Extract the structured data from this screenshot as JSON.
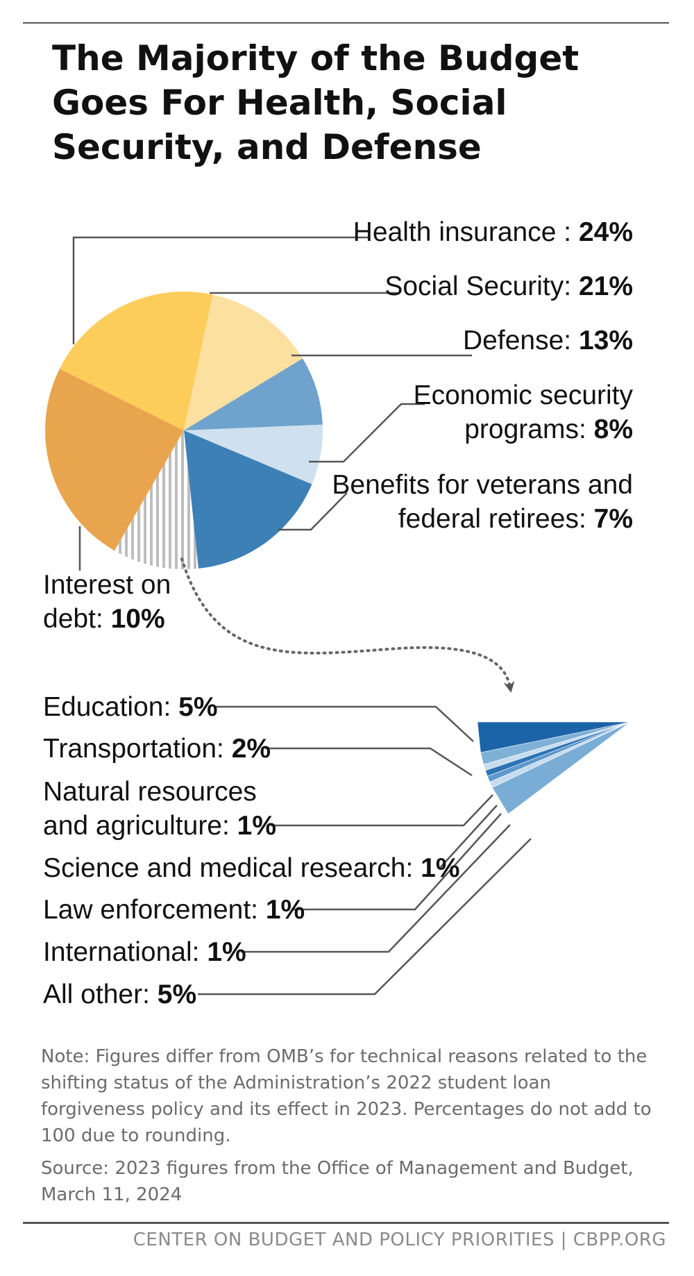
{
  "title": "The Majority of the Budget Goes For Health, Social Security, and Defense",
  "note": "Note: Figures differ from OMB’s for technical reasons related to the shifting status of the Administration’s 2022 student loan forgiveness policy and its effect in 2023. Percentages do not add to 100 due to rounding.",
  "source": "Source: 2023 figures from the Office of Management and Budget, March 11, 2024",
  "footer": "CENTER ON BUDGET AND POLICY PRIORITIES | CBPP.ORG",
  "chart_data": [
    {
      "type": "pie",
      "slices": [
        {
          "label_lines": [
            "Health insurance : "
          ],
          "value_text": "24%",
          "value": 24,
          "color": "#e9a54e"
        },
        {
          "label_lines": [
            "Social Security: "
          ],
          "value_text": "21%",
          "value": 21,
          "color": "#fccd5a"
        },
        {
          "label_lines": [
            "Defense: "
          ],
          "value_text": "13%",
          "value": 13,
          "color": "#fce0a0"
        },
        {
          "label_lines": [
            "Economic security",
            "programs: "
          ],
          "value_text": "8%",
          "value": 8,
          "color": "#6fa2cc"
        },
        {
          "label_lines": [
            "Benefits for veterans and",
            "federal retirees: "
          ],
          "value_text": "7%",
          "value": 7,
          "color": "#cfe1ee"
        },
        {
          "label_lines": [],
          "value_text": "",
          "value": 17,
          "color": "#3d80b6"
        },
        {
          "label_lines": [
            "Interest on",
            "debt: "
          ],
          "value_text": "10%",
          "value": 10,
          "color": "hatch"
        }
      ]
    },
    {
      "type": "pie",
      "slices": [
        {
          "label_lines": [
            "Education: "
          ],
          "value_text": "5%",
          "value": 5,
          "color": "#1c64a8"
        },
        {
          "label_lines": [
            "Transportation: "
          ],
          "value_text": "2%",
          "value": 2,
          "color": "#7fb0d6"
        },
        {
          "label_lines": [
            "Natural resources",
            "and agriculture: "
          ],
          "value_text": "1%",
          "value": 1,
          "color": "#c6dcee"
        },
        {
          "label_lines": [
            "Science and medical research: "
          ],
          "value_text": "1%",
          "value": 1,
          "color": "#2d74b4"
        },
        {
          "label_lines": [
            "Law enforcement: "
          ],
          "value_text": "1%",
          "value": 1,
          "color": "#5d99cc"
        },
        {
          "label_lines": [
            "International: "
          ],
          "value_text": "1%",
          "value": 1,
          "color": "#c6dcee"
        },
        {
          "label_lines": [
            "All other: "
          ],
          "value_text": "5%",
          "value": 5,
          "color": "#7aadd6"
        }
      ]
    }
  ]
}
